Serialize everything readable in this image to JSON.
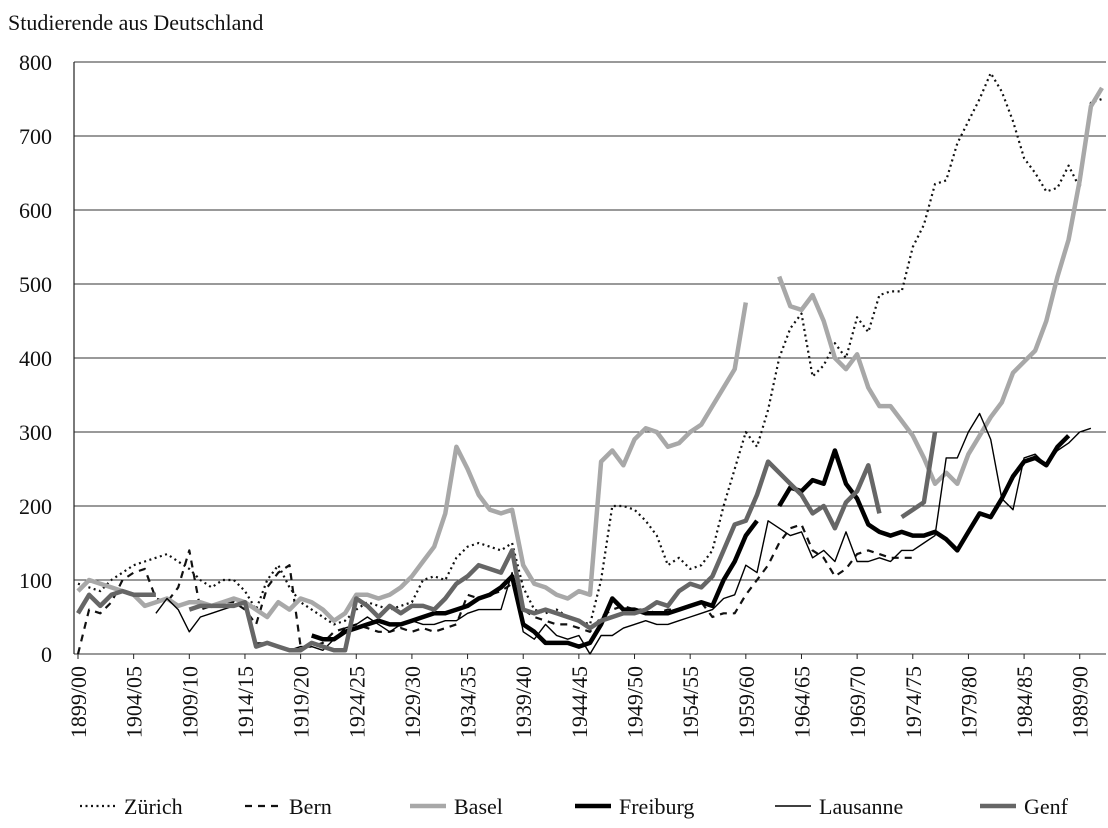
{
  "chart_data": {
    "type": "line",
    "title": "Studierende aus Deutschland",
    "categories": [
      "1899/00",
      null,
      null,
      null,
      null,
      "1904/05",
      null,
      null,
      null,
      null,
      "1909/10",
      null,
      null,
      null,
      null,
      "1914/15",
      null,
      null,
      null,
      null,
      "1919/20",
      null,
      null,
      null,
      null,
      "1924/25",
      null,
      null,
      null,
      null,
      "1929/30",
      null,
      null,
      null,
      null,
      "1934/35",
      null,
      null,
      null,
      null,
      "1939/40",
      null,
      null,
      null,
      null,
      "1944/45",
      null,
      null,
      null,
      null,
      "1949/50",
      null,
      null,
      null,
      null,
      "1954/55",
      null,
      null,
      null,
      null,
      "1959/60",
      null,
      null,
      null,
      null,
      "1964/65",
      null,
      null,
      null,
      null,
      "1969/70",
      null,
      null,
      null,
      null,
      "1974/75",
      null,
      null,
      null,
      null,
      "1979/80",
      null,
      null,
      null,
      null,
      "1984/85",
      null,
      null,
      null,
      null,
      "1989/90",
      null,
      null
    ],
    "ylim": [
      0,
      800
    ],
    "yticks": [
      0,
      100,
      200,
      300,
      400,
      500,
      600,
      700,
      800
    ],
    "grid": true,
    "series": [
      {
        "name": "Zürich",
        "color": "#111111",
        "style": "dotted",
        "weight": "thin",
        "values": [
          95,
          90,
          85,
          100,
          110,
          120,
          125,
          130,
          135,
          125,
          115,
          100,
          90,
          100,
          100,
          85,
          60,
          100,
          120,
          90,
          70,
          60,
          50,
          40,
          45,
          60,
          70,
          65,
          60,
          65,
          70,
          100,
          105,
          100,
          130,
          145,
          150,
          145,
          140,
          150,
          90,
          60,
          55,
          60,
          50,
          45,
          40,
          100,
          200,
          200,
          195,
          180,
          160,
          120,
          130,
          115,
          120,
          140,
          200,
          250,
          300,
          280,
          330,
          400,
          440,
          460,
          375,
          390,
          420,
          400,
          455,
          435,
          485,
          490,
          490,
          550,
          580,
          635,
          640,
          690,
          720,
          750,
          785,
          760,
          720,
          670,
          650,
          625,
          630,
          660,
          630,
          745,
          750
        ]
      },
      {
        "name": "Bern",
        "color": "#111111",
        "style": "dashed",
        "weight": "thin",
        "values": [
          0,
          60,
          55,
          70,
          100,
          110,
          115,
          75,
          70,
          90,
          140,
          60,
          65,
          70,
          70,
          60,
          40,
          90,
          110,
          120,
          10,
          10,
          15,
          30,
          35,
          40,
          35,
          30,
          30,
          35,
          30,
          35,
          30,
          35,
          40,
          80,
          75,
          80,
          85,
          95,
          60,
          50,
          45,
          40,
          40,
          35,
          30,
          50,
          60,
          65,
          60,
          60,
          55,
          60,
          60,
          65,
          70,
          50,
          55,
          55,
          80,
          100,
          120,
          150,
          170,
          175,
          140,
          130,
          105,
          115,
          135,
          140,
          135,
          130,
          130,
          130,
          null,
          null,
          null,
          null,
          null,
          null,
          null,
          null,
          null,
          null,
          null,
          null,
          null,
          null,
          null,
          null,
          null
        ]
      },
      {
        "name": "Basel",
        "color": "#a8a8a8",
        "style": "solid",
        "weight": "thick",
        "values": [
          85,
          100,
          95,
          90,
          85,
          80,
          65,
          70,
          75,
          65,
          70,
          70,
          65,
          70,
          75,
          70,
          60,
          50,
          70,
          60,
          75,
          70,
          60,
          45,
          55,
          80,
          80,
          75,
          80,
          90,
          105,
          125,
          145,
          190,
          280,
          250,
          215,
          195,
          190,
          195,
          120,
          95,
          90,
          80,
          75,
          85,
          80,
          260,
          275,
          255,
          290,
          305,
          300,
          280,
          285,
          300,
          310,
          335,
          360,
          385,
          475,
          null,
          null,
          510,
          470,
          465,
          485,
          450,
          400,
          385,
          405,
          360,
          335,
          335,
          315,
          295,
          265,
          230,
          245,
          230,
          270,
          295,
          320,
          340,
          380,
          395,
          410,
          450,
          510,
          560,
          640,
          740,
          765
        ]
      },
      {
        "name": "Freiburg",
        "color": "#000000",
        "style": "solid",
        "weight": "thick",
        "values": [
          null,
          null,
          null,
          null,
          null,
          null,
          null,
          null,
          null,
          null,
          null,
          null,
          null,
          null,
          null,
          null,
          null,
          null,
          null,
          null,
          null,
          25,
          20,
          20,
          30,
          35,
          40,
          45,
          40,
          40,
          45,
          50,
          55,
          55,
          60,
          65,
          75,
          80,
          90,
          105,
          40,
          30,
          15,
          15,
          15,
          10,
          15,
          40,
          75,
          60,
          60,
          55,
          55,
          55,
          60,
          65,
          70,
          65,
          100,
          125,
          160,
          180,
          null,
          200,
          225,
          220,
          235,
          230,
          275,
          230,
          210,
          175,
          165,
          160,
          165,
          160,
          160,
          165,
          155,
          140,
          165,
          190,
          185,
          210,
          240,
          260,
          265,
          255,
          280,
          295,
          null,
          null,
          null
        ]
      },
      {
        "name": "Lausanne",
        "color": "#000000",
        "style": "solid",
        "weight": "thin",
        "values": [
          null,
          null,
          null,
          null,
          null,
          null,
          null,
          55,
          75,
          60,
          30,
          50,
          55,
          60,
          65,
          70,
          15,
          15,
          10,
          5,
          10,
          10,
          5,
          20,
          35,
          40,
          50,
          40,
          30,
          40,
          45,
          40,
          40,
          45,
          45,
          55,
          60,
          60,
          60,
          110,
          30,
          20,
          40,
          25,
          20,
          25,
          0,
          25,
          25,
          35,
          40,
          45,
          40,
          40,
          45,
          50,
          55,
          60,
          75,
          80,
          120,
          110,
          180,
          170,
          160,
          165,
          130,
          140,
          125,
          165,
          125,
          125,
          130,
          125,
          140,
          140,
          150,
          160,
          265,
          265,
          300,
          325,
          290,
          210,
          195,
          265,
          270,
          255,
          275,
          285,
          300,
          305,
          null
        ]
      },
      {
        "name": "Genf",
        "color": "#666666",
        "style": "solid",
        "weight": "thick",
        "values": [
          55,
          80,
          65,
          80,
          85,
          80,
          80,
          80,
          null,
          null,
          60,
          65,
          65,
          65,
          65,
          70,
          10,
          15,
          10,
          5,
          5,
          15,
          10,
          5,
          5,
          75,
          65,
          50,
          65,
          55,
          65,
          65,
          60,
          75,
          95,
          105,
          120,
          115,
          110,
          140,
          60,
          55,
          60,
          55,
          50,
          45,
          35,
          45,
          50,
          55,
          55,
          60,
          70,
          65,
          85,
          95,
          90,
          105,
          140,
          175,
          180,
          215,
          260,
          245,
          230,
          215,
          190,
          200,
          170,
          205,
          220,
          255,
          190,
          null,
          185,
          195,
          205,
          300,
          null,
          null,
          null,
          null,
          null,
          null,
          null,
          null,
          null,
          null,
          null,
          null,
          null,
          null,
          null
        ]
      }
    ]
  }
}
